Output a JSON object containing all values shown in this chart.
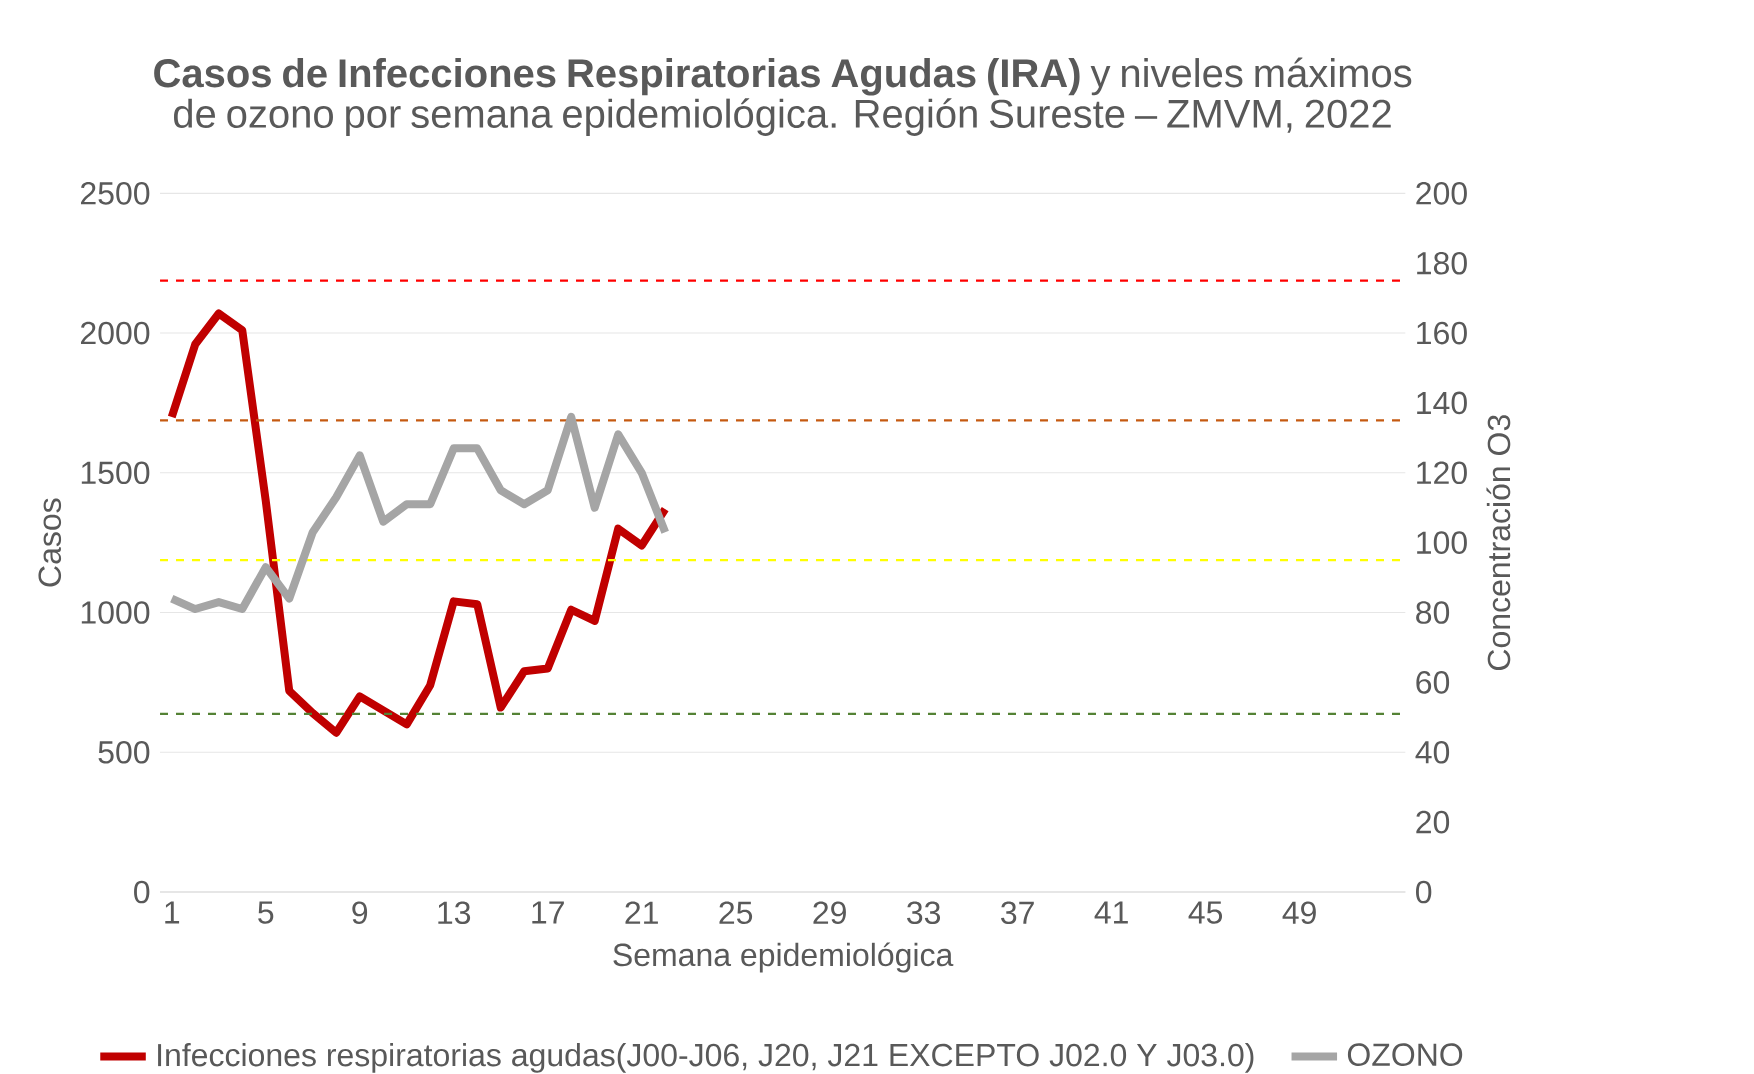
{
  "chart_data": {
    "type": "line",
    "title": "**Casos de Infecciones Respiratorias Agudas (IRA)** y niveles máximos de ozono por semana epidemiológica. Región Sureste – ZMVM, 2022",
    "xlabel": "Semana epidemiológica",
    "ylabel": "Casos",
    "y2label": "Concentración O3",
    "x": [
      1,
      2,
      3,
      4,
      5,
      6,
      7,
      8,
      9,
      10,
      11,
      12,
      13,
      14,
      15,
      16,
      17,
      18,
      19,
      20,
      21,
      22
    ],
    "xlim": [
      0.5,
      53.5
    ],
    "xticks": [
      1,
      5,
      9,
      13,
      17,
      21,
      25,
      29,
      33,
      37,
      41,
      45,
      49
    ],
    "ylim": [
      0,
      2500
    ],
    "yticks": [
      0,
      500,
      1000,
      1500,
      2000,
      2500
    ],
    "y2lim": [
      0,
      200
    ],
    "y2ticks": [
      0,
      20,
      40,
      60,
      80,
      100,
      120,
      140,
      160,
      180,
      200
    ],
    "series": [
      {
        "name": "Infecciones respiratorias agudas(J00-J06, J20, J21 EXCEPTO J02.0 Y J03.0)",
        "color": "#c00000",
        "values": [
          1700,
          1960,
          2070,
          2010,
          1400,
          720,
          640,
          570,
          700,
          650,
          600,
          740,
          1040,
          1030,
          660,
          790,
          800,
          1010,
          970,
          1300,
          1240,
          1370
        ]
      },
      {
        "name": "OZONO",
        "color": "#a5a5a5",
        "axis": "y2",
        "values": [
          84,
          81,
          83,
          81,
          93,
          84,
          103,
          113,
          125,
          106,
          111,
          111,
          127,
          127,
          115,
          111,
          115,
          136,
          110,
          131,
          120,
          103
        ]
      }
    ],
    "ref_lines": [
      {
        "axis": "y2",
        "value": 175,
        "color": "#ff0000",
        "line_style": "dashed"
      },
      {
        "axis": "y2",
        "value": 135,
        "color": "#c55a11",
        "line_style": "dashed"
      },
      {
        "axis": "y2",
        "value": 95,
        "color": "#ffff00",
        "line_style": "dashed"
      },
      {
        "axis": "y2",
        "value": 51,
        "color": "#548235",
        "line_style": "dashed"
      }
    ],
    "grid": "y",
    "legend": "bottom",
    "line_style": "solid"
  }
}
